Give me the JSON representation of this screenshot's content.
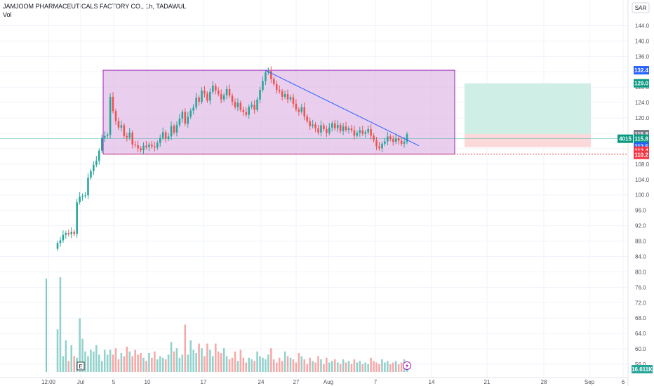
{
  "header": {
    "title": "JAMJOOM PHARMACEUTICALS FACTORY CO., 1h, TADAWUL",
    "vol_label": "Vol"
  },
  "currency": "SAR",
  "colors": {
    "up": "#26a69a",
    "down": "#ef5350",
    "range_box_fill": "#e1bee7",
    "range_box_stroke": "#9c27b0",
    "target_fill": "#cfeee6",
    "stop_fill": "#fbd9da",
    "trend_line": "#2962ff",
    "support_line": "#e53935"
  },
  "chart_data": {
    "type": "candlestick",
    "x_tick_labels": [
      "12:00",
      "Jul",
      "5",
      "10",
      "17",
      "24",
      "27",
      "Aug",
      "7",
      "14",
      "21",
      "28",
      "Sep",
      "6"
    ],
    "y_ticks": [
      56.0,
      60.0,
      64.0,
      68.0,
      72.0,
      76.0,
      80.0,
      84.0,
      88.0,
      92.0,
      96.0,
      100.0,
      104.0,
      108.0,
      112.0,
      116.0,
      120.0,
      124.0,
      128.0,
      132.0,
      136.0,
      140.0,
      144.0
    ],
    "ylim": [
      54,
      147
    ],
    "price_tags": [
      {
        "label": "132.4",
        "value": 132.4,
        "color": "#2962ff"
      },
      {
        "label": "129.0",
        "value": 129.0,
        "color": "#089981"
      },
      {
        "label": "115.8",
        "value": 115.8,
        "color": "#787b86"
      },
      {
        "label": "115.8",
        "value": 114.6,
        "color": "#089981",
        "prefix": "4015"
      },
      {
        "label": "112.6",
        "value": 112.6,
        "color": "#2962ff"
      },
      {
        "label": "112.4",
        "value": 111.5,
        "color": "#f23645"
      },
      {
        "label": "110.2",
        "value": 110.4,
        "color": "#f23645"
      }
    ],
    "volume_tag": "16.611K",
    "event_marker": "E",
    "range_box": {
      "price_top": 132.4,
      "price_bottom": 110.6
    },
    "trendline": {
      "start_price": 132.4,
      "end_price": 112.6
    },
    "support_level": 110.6,
    "position": {
      "target": 129.0,
      "entry": 115.8,
      "stop": 112.4
    },
    "last_price": 115.8,
    "candles_close": [
      87.5,
      88.2,
      89.6,
      90.1,
      89.8,
      90.4,
      89.9,
      98.1,
      99.5,
      99.8,
      99.9,
      104.5,
      106.2,
      107.8,
      108.9,
      111.5,
      114.8,
      115.3,
      115.6,
      125.5,
      121.8,
      119.2,
      117.5,
      118.1,
      115.3,
      114.9,
      116.2,
      113.1,
      112.9,
      112.1,
      111.6,
      112.8,
      112.4,
      113.1,
      112.6,
      112.3,
      113.5,
      114.8,
      116.3,
      114.6,
      115.2,
      117.9,
      116.2,
      118.2,
      119.8,
      121.6,
      118.5,
      120.3,
      121.9,
      122.7,
      125.3,
      124.2,
      127.1,
      126.3,
      124.5,
      126.8,
      128.4,
      127.1,
      126.2,
      124.8,
      125.9,
      127.5,
      125.8,
      124.2,
      122.8,
      123.9,
      122.1,
      121.5,
      120.8,
      122.9,
      123.4,
      122.1,
      124.8,
      127.3,
      129.6,
      131.8,
      132.2,
      130.1,
      128.8,
      127.3,
      126.9,
      125.5,
      126.2,
      124.8,
      125.4,
      123.7,
      122.2,
      121.6,
      122.8,
      120.4,
      119.2,
      117.9,
      118.3,
      117.3,
      116.2,
      118.1,
      117.1,
      116.1,
      117.5,
      118.6,
      117.3,
      118.2,
      116.6,
      117.8,
      116.9,
      117.3,
      116.8,
      115.4,
      116.1,
      116.8,
      115.9,
      116.3,
      117.1,
      115.4,
      114.2,
      112.6,
      112.1,
      113.3,
      113.9,
      115.2,
      114.5,
      113.8,
      114.7,
      114.1,
      113.3,
      113.8,
      115.8
    ],
    "volumes": [
      27,
      60,
      10,
      20,
      7,
      17,
      10,
      9,
      34,
      21,
      13,
      10,
      14,
      13,
      17,
      11,
      7,
      14,
      11,
      14,
      11,
      15,
      8,
      12,
      10,
      16,
      13,
      10,
      14,
      11,
      12,
      9,
      7,
      12,
      9,
      13,
      8,
      10,
      9,
      8,
      11,
      19,
      13,
      15,
      9,
      11,
      30,
      11,
      20,
      14,
      12,
      18,
      15,
      10,
      18,
      14,
      10,
      18,
      13,
      12,
      15,
      10,
      8,
      9,
      13,
      7,
      14,
      9,
      6,
      9,
      8,
      7,
      13,
      10,
      9,
      8,
      11,
      15,
      8,
      6,
      9,
      7,
      13,
      10,
      9,
      8,
      6,
      12,
      10,
      8,
      5,
      9,
      7,
      6,
      10,
      8,
      5,
      9,
      6,
      7,
      8,
      6,
      5,
      8,
      6,
      7,
      5,
      8,
      6,
      7,
      5,
      6,
      5,
      9,
      7,
      6,
      5,
      8,
      6,
      7,
      5,
      6,
      7,
      5,
      6,
      8,
      4
    ]
  }
}
